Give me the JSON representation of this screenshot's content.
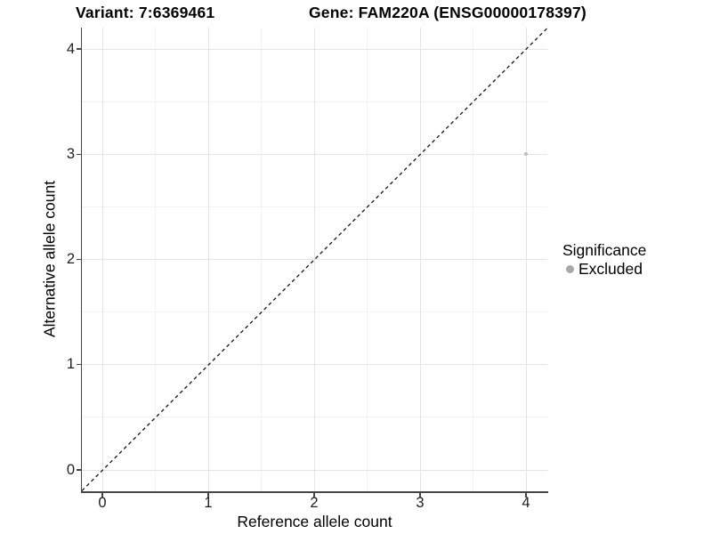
{
  "header": {
    "variant_title": "Variant: 7:6369461",
    "gene_title": "Gene: FAM220A (ENSG00000178397)"
  },
  "axes": {
    "x": {
      "label": "Reference allele count",
      "tick_labels": [
        "0",
        "1",
        "2",
        "3",
        "4"
      ]
    },
    "y": {
      "label": "Alternative allele count",
      "tick_labels": [
        "0",
        "1",
        "2",
        "3",
        "4"
      ]
    }
  },
  "legend": {
    "title": "Significance",
    "items": [
      {
        "label": "Excluded",
        "swatch_color": "#a8a8a8"
      }
    ]
  },
  "colors": {
    "background": "#ffffff",
    "point": "#bcbcbc",
    "legend_point": "#a8a8a8",
    "grid_major": "#e4e4e4",
    "grid_minor": "#f2f2f2",
    "axis_line": "#454545",
    "reference_line": "#141414",
    "text": "#000000"
  },
  "chart_data": {
    "type": "scatter",
    "title": "Variant: 7:6369461  /  Gene: FAM220A (ENSG00000178397)",
    "xlabel": "Reference allele count",
    "ylabel": "Alternative allele count",
    "xlim": [
      -0.2,
      4.2
    ],
    "ylim": [
      -0.2,
      4.2
    ],
    "xticks": [
      0,
      1,
      2,
      3,
      4
    ],
    "yticks": [
      0,
      1,
      2,
      3,
      4
    ],
    "grid": "major + minor, light grey on white panel",
    "legend_position": "right",
    "series": [
      {
        "name": "Excluded",
        "color": "#bcbcbc",
        "marker": "circle",
        "points": [
          [
            4,
            3
          ]
        ]
      }
    ],
    "reference_line": {
      "type": "identity y=x",
      "style": "dashed",
      "color": "black",
      "span": "full panel diagonal"
    }
  }
}
